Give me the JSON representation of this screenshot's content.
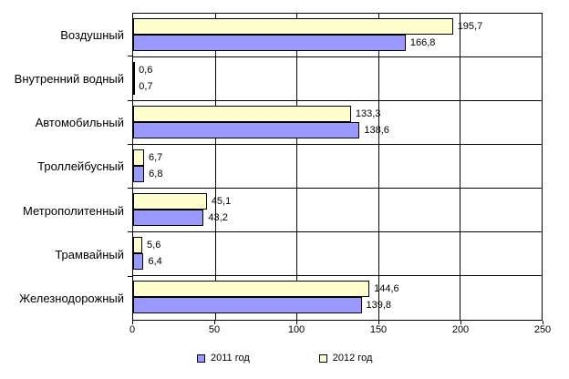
{
  "chart_data": {
    "type": "bar",
    "orientation": "horizontal",
    "title": "",
    "categories": [
      "Воздушный",
      "Внутренний водный",
      "Автомобильный",
      "Троллейбусный",
      "Метрополитенный",
      "Трамвайный",
      "Железнодорожный"
    ],
    "series": [
      {
        "name": "2012 год",
        "color": "#FFFFCC",
        "values": [
          195.7,
          0.6,
          133.3,
          6.7,
          45.1,
          5.6,
          144.6
        ],
        "labels": [
          "195,7",
          "0,6",
          "133,3",
          "6,7",
          "45,1",
          "5,6",
          "144,6"
        ]
      },
      {
        "name": "2011 год",
        "color": "#9999FF",
        "values": [
          166.8,
          0.7,
          138.6,
          6.8,
          43.2,
          6.4,
          139.8
        ],
        "labels": [
          "166,8",
          "0,7",
          "138,6",
          "6,8",
          "43,2",
          "6,4",
          "139,8"
        ]
      }
    ],
    "x_axis": {
      "min": 0,
      "max": 250,
      "tick_step": 50,
      "ticks": [
        "0",
        "50",
        "100",
        "150",
        "200",
        "250"
      ]
    },
    "legend": [
      {
        "label": "2011 год",
        "color": "#9999FF"
      },
      {
        "label": "2012 год",
        "color": "#FFFFCC"
      }
    ],
    "layout": {
      "grid": "vertical-major",
      "legend_position": "bottom",
      "bar_border_color": "#000000",
      "text_color": "#000000"
    }
  }
}
